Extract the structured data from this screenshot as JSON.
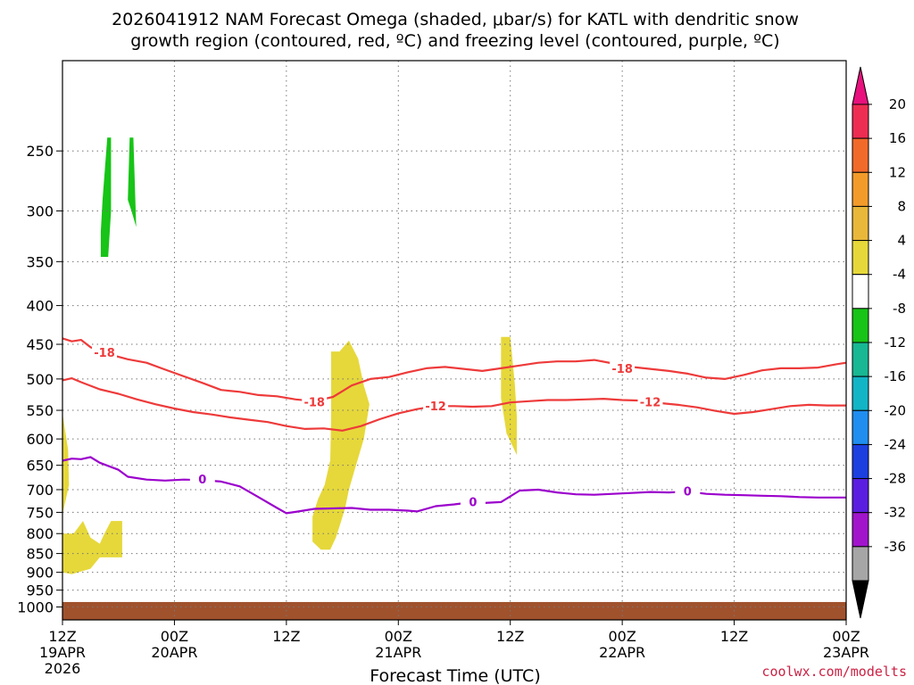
{
  "page": {
    "title_line1": "2026041912 NAM Forecast Omega (shaded, μbar/s) for KATL with dendritic snow",
    "title_line2": "growth region (contoured, red, ºC) and freezing level (contoured, purple, ºC)",
    "credit": "coolwx.com/modelts"
  },
  "chart_data": {
    "type": "area",
    "title": "2026041912 NAM Forecast Omega (shaded, μbar/s) for KATL with dendritic snow growth region (contoured, red, ºC) and freezing level (contoured, purple, ºC)",
    "xlabel": "Forecast Time (UTC)",
    "ylabel": "",
    "x_unit": "forecast hour from 2026-04-19 12Z",
    "xlim": [
      0,
      84
    ],
    "ylim": [
      1040,
      190
    ],
    "y_scale": "log-pressure",
    "grid": true,
    "x_ticks": [
      {
        "value": 0,
        "top": "12Z",
        "bottom": "19APR",
        "extra": "2026"
      },
      {
        "value": 12,
        "top": "00Z",
        "bottom": "20APR",
        "extra": ""
      },
      {
        "value": 24,
        "top": "12Z",
        "bottom": "",
        "extra": ""
      },
      {
        "value": 36,
        "top": "00Z",
        "bottom": "21APR",
        "extra": ""
      },
      {
        "value": 48,
        "top": "12Z",
        "bottom": "",
        "extra": ""
      },
      {
        "value": 60,
        "top": "00Z",
        "bottom": "22APR",
        "extra": ""
      },
      {
        "value": 72,
        "top": "12Z",
        "bottom": "",
        "extra": ""
      },
      {
        "value": 84,
        "top": "00Z",
        "bottom": "23APR",
        "extra": ""
      }
    ],
    "y_ticks": [
      250,
      300,
      350,
      400,
      450,
      500,
      550,
      600,
      650,
      700,
      750,
      800,
      850,
      900,
      950,
      1000
    ],
    "colorbar": {
      "labels": [
        "20",
        "16",
        "12",
        "8",
        "4",
        "-4",
        "-8",
        "-12",
        "-16",
        "-20",
        "-24",
        "-28",
        "-32",
        "-36"
      ],
      "colors": [
        "#ee2d52",
        "#f26a2a",
        "#f39b2a",
        "#e9b73a",
        "#e6d83a",
        "#ffffff",
        "#17c417",
        "#17b893",
        "#12b5c6",
        "#1f8ef0",
        "#1c3fe0",
        "#5a1ee0",
        "#a114cc",
        "#a6a6a6"
      ],
      "top_arrow_color": "#e8117d",
      "bottom_arrow_color": "#000000"
    },
    "contours": [
      {
        "label": "-18",
        "color": "#ee3a3a",
        "label_positions": [
          [
            4.5,
            462
          ],
          [
            27,
            537
          ],
          [
            60,
            485
          ]
        ],
        "points": [
          [
            0,
            442
          ],
          [
            1,
            446
          ],
          [
            2,
            444
          ],
          [
            3,
            454
          ],
          [
            5,
            464
          ],
          [
            7,
            471
          ],
          [
            9,
            476
          ],
          [
            11,
            486
          ],
          [
            13,
            496
          ],
          [
            15,
            506
          ],
          [
            17,
            517
          ],
          [
            19,
            520
          ],
          [
            21,
            525
          ],
          [
            23,
            527
          ],
          [
            25,
            532
          ],
          [
            27,
            535
          ],
          [
            29,
            528
          ],
          [
            31,
            510
          ],
          [
            33,
            500
          ],
          [
            35,
            497
          ],
          [
            37,
            490
          ],
          [
            39,
            484
          ],
          [
            41,
            482
          ],
          [
            43,
            485
          ],
          [
            45,
            488
          ],
          [
            47,
            484
          ],
          [
            49,
            480
          ],
          [
            51,
            476
          ],
          [
            53,
            474
          ],
          [
            55,
            474
          ],
          [
            57,
            472
          ],
          [
            59,
            477
          ],
          [
            61,
            482
          ],
          [
            63,
            485
          ],
          [
            65,
            488
          ],
          [
            67,
            492
          ],
          [
            69,
            498
          ],
          [
            71,
            500
          ],
          [
            73,
            494
          ],
          [
            75,
            487
          ],
          [
            77,
            484
          ],
          [
            79,
            484
          ],
          [
            81,
            483
          ],
          [
            83,
            478
          ],
          [
            84,
            476
          ]
        ]
      },
      {
        "label": "-12",
        "color": "#ee3a3a",
        "label_positions": [
          [
            40,
            543
          ],
          [
            63,
            537
          ]
        ],
        "points": [
          [
            0,
            502
          ],
          [
            1,
            499
          ],
          [
            2,
            505
          ],
          [
            4,
            516
          ],
          [
            6,
            523
          ],
          [
            8,
            532
          ],
          [
            10,
            540
          ],
          [
            12,
            547
          ],
          [
            14,
            553
          ],
          [
            16,
            557
          ],
          [
            18,
            562
          ],
          [
            20,
            566
          ],
          [
            22,
            570
          ],
          [
            24,
            577
          ],
          [
            26,
            582
          ],
          [
            28,
            581
          ],
          [
            30,
            585
          ],
          [
            32,
            577
          ],
          [
            34,
            565
          ],
          [
            36,
            555
          ],
          [
            38,
            548
          ],
          [
            40,
            543
          ],
          [
            42,
            543
          ],
          [
            44,
            544
          ],
          [
            46,
            543
          ],
          [
            48,
            537
          ],
          [
            50,
            535
          ],
          [
            52,
            533
          ],
          [
            54,
            533
          ],
          [
            56,
            532
          ],
          [
            58,
            531
          ],
          [
            60,
            533
          ],
          [
            62,
            534
          ],
          [
            64,
            538
          ],
          [
            66,
            541
          ],
          [
            68,
            545
          ],
          [
            70,
            551
          ],
          [
            72,
            556
          ],
          [
            74,
            553
          ],
          [
            76,
            548
          ],
          [
            78,
            543
          ],
          [
            80,
            541
          ],
          [
            82,
            542
          ],
          [
            84,
            542
          ]
        ]
      },
      {
        "label": "0",
        "color": "#9b00cc",
        "label_positions": [
          [
            15,
            679
          ],
          [
            44,
            727
          ],
          [
            67,
            704
          ]
        ],
        "points": [
          [
            0,
            641
          ],
          [
            1,
            637
          ],
          [
            2,
            638
          ],
          [
            3,
            634
          ],
          [
            4,
            645
          ],
          [
            6,
            659
          ],
          [
            7,
            673
          ],
          [
            9,
            679
          ],
          [
            11,
            681
          ],
          [
            13,
            679
          ],
          [
            15,
            680
          ],
          [
            17,
            683
          ],
          [
            19,
            693
          ],
          [
            21,
            716
          ],
          [
            23,
            740
          ],
          [
            24,
            752
          ],
          [
            25,
            749
          ],
          [
            27,
            742
          ],
          [
            29,
            741
          ],
          [
            31,
            740
          ],
          [
            33,
            744
          ],
          [
            35,
            744
          ],
          [
            37,
            746
          ],
          [
            38,
            748
          ],
          [
            40,
            736
          ],
          [
            42,
            732
          ],
          [
            44,
            727
          ],
          [
            45,
            729
          ],
          [
            47,
            727
          ],
          [
            49,
            702
          ],
          [
            51,
            700
          ],
          [
            53,
            706
          ],
          [
            55,
            710
          ],
          [
            57,
            711
          ],
          [
            59,
            709
          ],
          [
            61,
            707
          ],
          [
            63,
            705
          ],
          [
            65,
            706
          ],
          [
            67,
            704
          ],
          [
            69,
            709
          ],
          [
            71,
            711
          ],
          [
            73,
            712
          ],
          [
            75,
            713
          ],
          [
            77,
            714
          ],
          [
            79,
            716
          ],
          [
            81,
            717
          ],
          [
            83,
            717
          ],
          [
            84,
            717
          ]
        ]
      }
    ],
    "shaded_regions": [
      {
        "value_range": "4 to 8",
        "color": "#e6d83a",
        "polygon": [
          [
            0,
            555
          ],
          [
            0.6,
            620
          ],
          [
            0.7,
            690
          ],
          [
            0,
            755
          ]
        ]
      },
      {
        "value_range": "4 to 8",
        "color": "#e6d83a",
        "polygon": [
          [
            0,
            800
          ],
          [
            1.2,
            800
          ],
          [
            2.2,
            770
          ],
          [
            3,
            810
          ],
          [
            4,
            825
          ],
          [
            4.5,
            800
          ],
          [
            5.2,
            770
          ],
          [
            6.4,
            770
          ],
          [
            6.4,
            860
          ],
          [
            4,
            860
          ],
          [
            3,
            890
          ],
          [
            1,
            905
          ],
          [
            0,
            900
          ]
        ]
      },
      {
        "value_range": "4 to 8",
        "color": "#e6d83a",
        "polygon": [
          [
            29.7,
            460
          ],
          [
            30.7,
            445
          ],
          [
            31.7,
            470
          ],
          [
            32.3,
            510
          ],
          [
            32.9,
            540
          ],
          [
            32.3,
            600
          ],
          [
            31.3,
            660
          ],
          [
            30.7,
            700
          ],
          [
            30.3,
            740
          ],
          [
            29.8,
            775
          ],
          [
            29.3,
            810
          ],
          [
            28.7,
            840
          ],
          [
            27.7,
            840
          ],
          [
            26.8,
            820
          ],
          [
            26.8,
            760
          ],
          [
            27.4,
            720
          ],
          [
            28.1,
            690
          ],
          [
            28.7,
            640
          ],
          [
            28.8,
            560
          ],
          [
            28.8,
            460
          ]
        ]
      },
      {
        "value_range": "4 to 8",
        "color": "#e6d83a",
        "polygon": [
          [
            47,
            440
          ],
          [
            48,
            440
          ],
          [
            48.5,
            510
          ],
          [
            48.7,
            560
          ],
          [
            48.7,
            630
          ],
          [
            47.6,
            590
          ],
          [
            47,
            530
          ]
        ]
      },
      {
        "value_range": "-4 to -8",
        "color": "#17c417",
        "polygon": [
          [
            4.1,
            345
          ],
          [
            4.9,
            345
          ],
          [
            5.2,
            300
          ],
          [
            5.2,
            240
          ],
          [
            4.8,
            240
          ],
          [
            4.3,
            290
          ],
          [
            4.1,
            320
          ]
        ]
      },
      {
        "value_range": "-4 to -8",
        "color": "#17c417",
        "polygon": [
          [
            7.2,
            240
          ],
          [
            7.6,
            240
          ],
          [
            7.9,
            315
          ],
          [
            7.4,
            300
          ],
          [
            7,
            290
          ]
        ]
      }
    ],
    "terrain": {
      "color": "#a0522d",
      "top_pressure": 985
    }
  }
}
